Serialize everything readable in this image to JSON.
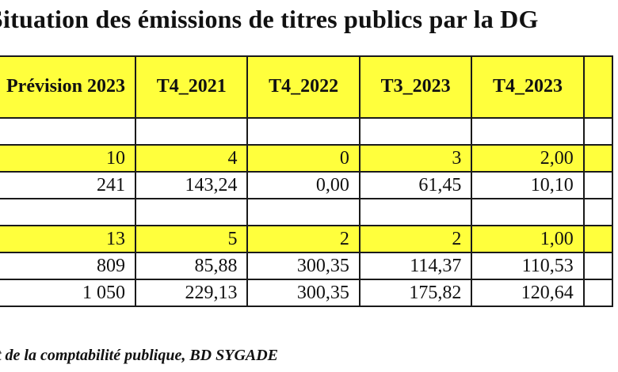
{
  "title": "Situation des émissions de titres publics par la DG",
  "columns": [
    "Prévision 2023",
    "T4_2021",
    "T4_2022",
    "T3_2023",
    "T4_2023",
    ""
  ],
  "rows": [
    {
      "highlight": false,
      "cells": [
        "",
        "",
        "",
        "",
        "",
        ""
      ]
    },
    {
      "highlight": true,
      "cells": [
        "10",
        "4",
        "0",
        "3",
        "2,00",
        ""
      ]
    },
    {
      "highlight": false,
      "cells": [
        "241",
        "143,24",
        "0,00",
        "61,45",
        "10,10",
        ""
      ]
    },
    {
      "highlight": false,
      "cells": [
        "",
        "",
        "",
        "",
        "",
        ""
      ]
    },
    {
      "highlight": true,
      "cells": [
        "13",
        "5",
        "2",
        "2",
        "1,00",
        ""
      ]
    },
    {
      "highlight": false,
      "cells": [
        "809",
        "85,88",
        "300,35",
        "114,37",
        "110,53",
        ""
      ]
    },
    {
      "highlight": false,
      "cells": [
        "1 050",
        "229,13",
        "300,35",
        "175,82",
        "120,64",
        ""
      ]
    }
  ],
  "footer": "t de la comptabilité publique, BD SYGADE",
  "colors": {
    "highlight": "#ffff3c",
    "border": "#1a1a1a"
  }
}
